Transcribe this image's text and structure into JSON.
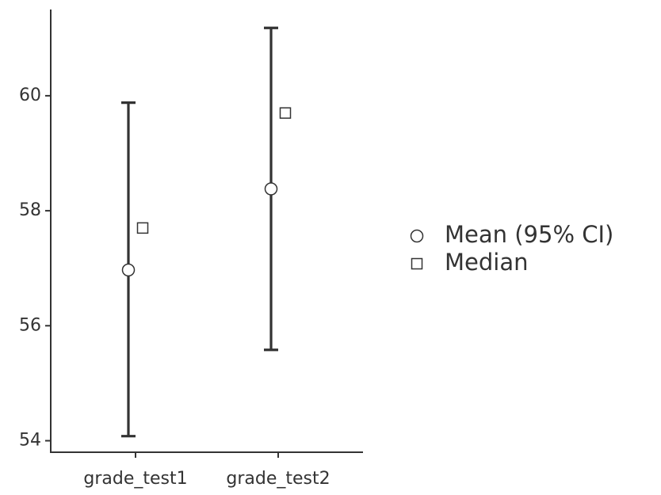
{
  "chart_data": {
    "type": "scatter",
    "categories": [
      "grade_test1",
      "grade_test2"
    ],
    "series": [
      {
        "name": "Mean (95% CI)",
        "marker": "circle",
        "values": [
          56.97,
          58.38
        ],
        "ci_lower": [
          54.08,
          55.58
        ],
        "ci_upper": [
          59.88,
          61.18
        ]
      },
      {
        "name": "Median",
        "marker": "square",
        "values": [
          57.7,
          59.7
        ]
      }
    ],
    "y_ticks": [
      54,
      56,
      58,
      60
    ],
    "ylim": [
      53.8,
      61.5
    ],
    "title": "",
    "xlabel": "",
    "ylabel": "",
    "grid": false,
    "legend_position": "right",
    "colors": {
      "ink": "#333333",
      "marker_fill": "#ffffff"
    }
  }
}
